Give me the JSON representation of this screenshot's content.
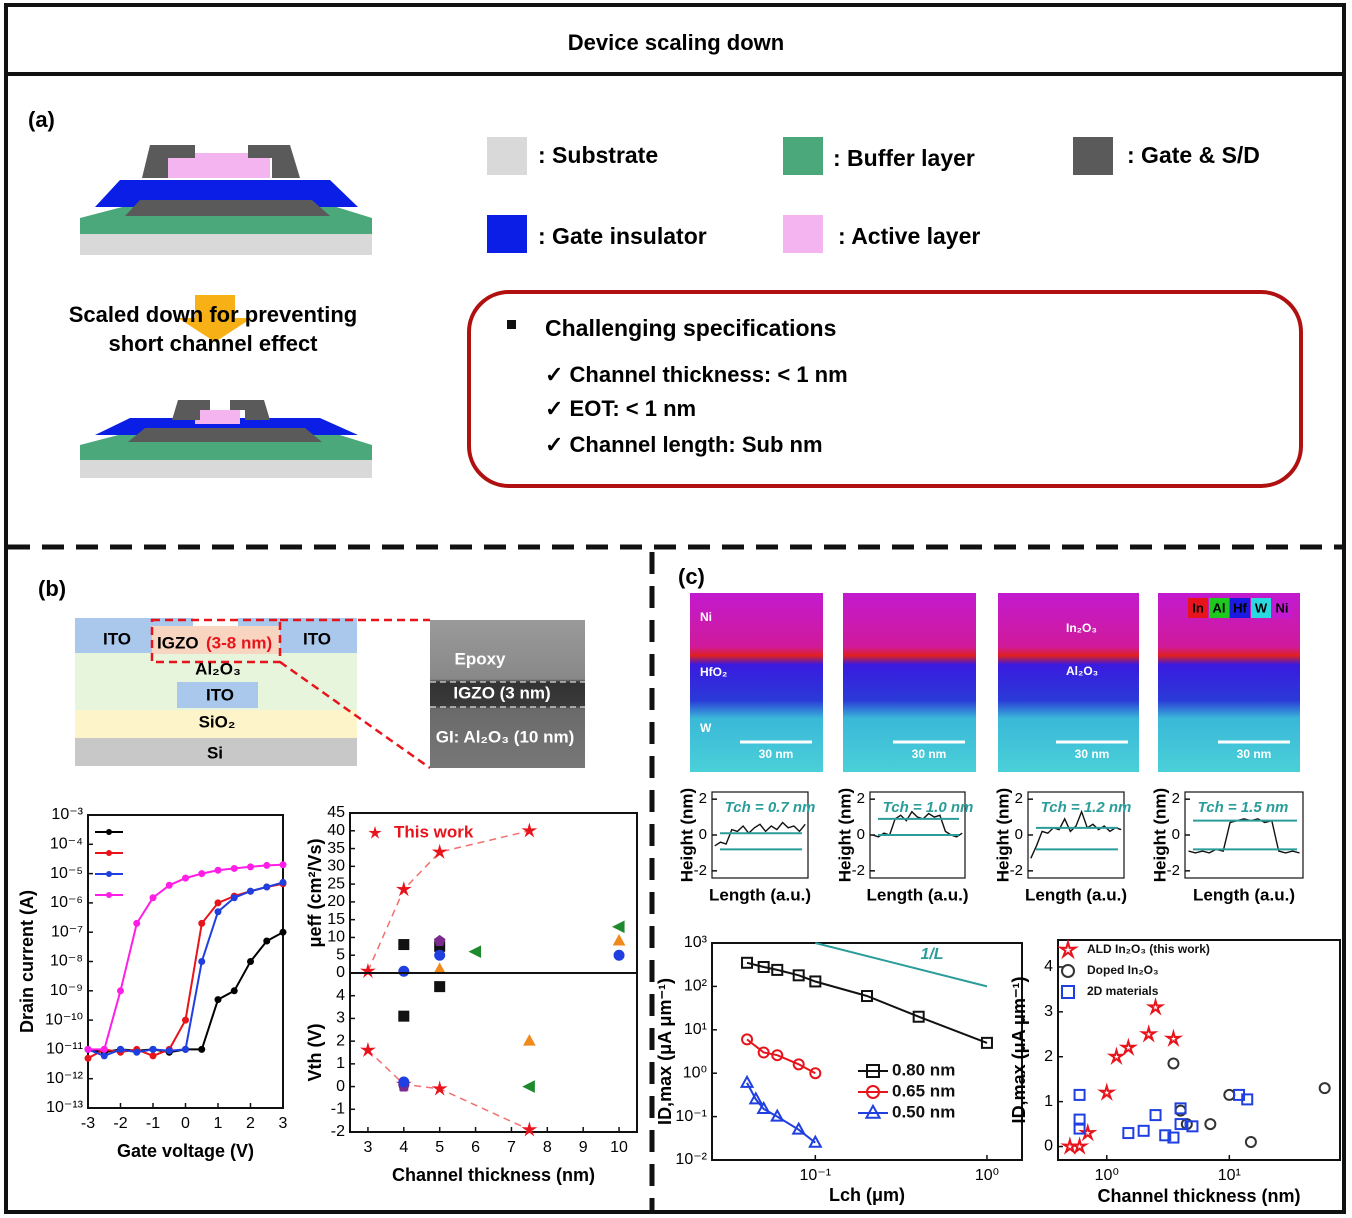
{
  "header": {
    "title": "Device scaling down"
  },
  "panel_a": {
    "label": "(a)",
    "legend": [
      ": Substrate",
      ": Buffer layer",
      ": Gate & S/D",
      ": Gate insulator",
      ": Active layer"
    ],
    "arrow_text": [
      "Scaled down for preventing",
      "short channel effect"
    ],
    "spec_title": "Challenging specifications",
    "specs": [
      "✓ Channel thickness: < 1 nm",
      "✓ EOT: < 1 nm",
      "✓ Channel length: Sub nm"
    ]
  },
  "panel_b": {
    "label": "(b)",
    "stack": [
      "ITO",
      "IGZO",
      "(3-8 nm)",
      "ITO",
      "Al₂O₃",
      "ITO",
      "SiO₂",
      "Si"
    ],
    "tem": [
      "Epoxy",
      "IGZO (3 nm)",
      "GI: Al₂O₃ (10 nm)"
    ]
  },
  "panel_c": {
    "label": "(c)",
    "eds_legend": [
      "In",
      "Al",
      "Hf",
      "W",
      "Ni"
    ],
    "layers": [
      "Ni",
      "HfO₂",
      "W"
    ],
    "interface": [
      "In₂O₃",
      "Al₂O₃"
    ],
    "scale_bar": "30 nm"
  },
  "chart_data": [
    {
      "type": "line",
      "xlabel": "Gate voltage (V)",
      "ylabel": "Drain current (A)",
      "yscale": "log",
      "x": [
        -3,
        -2.5,
        -2,
        -1.5,
        -1,
        -0.5,
        0,
        0.5,
        1,
        1.5,
        2,
        2.5,
        3
      ],
      "series": [
        {
          "color": "#000000",
          "values": [
            1e-11,
            8e-12,
            1e-11,
            9e-12,
            1e-11,
            8e-12,
            1e-11,
            1e-11,
            5e-10,
            1e-09,
            1e-08,
            5e-08,
            1e-07
          ]
        },
        {
          "color": "#e8141c",
          "values": [
            5e-12,
            1e-11,
            8e-12,
            1e-11,
            6e-12,
            1e-11,
            1e-10,
            2e-07,
            1e-06,
            1.7e-06,
            2.5e-06,
            3.5e-06,
            4.5e-06
          ]
        },
        {
          "color": "#1f3fe0",
          "values": [
            1e-11,
            6e-12,
            1e-11,
            8e-12,
            1e-11,
            9e-12,
            1e-11,
            1e-08,
            5e-07,
            1.5e-06,
            2.5e-06,
            3.5e-06,
            5e-06
          ]
        },
        {
          "color": "#ff1ee6",
          "values": [
            1e-11,
            1e-11,
            1e-09,
            2e-07,
            1.5e-06,
            4e-06,
            7e-06,
            1e-05,
            1.3e-05,
            1.5e-05,
            1.7e-05,
            1.9e-05,
            2e-05
          ]
        }
      ],
      "xlim": [
        -3,
        3
      ],
      "xticks": [
        -3,
        -2,
        -1,
        0,
        1,
        2,
        3
      ],
      "ylim": [
        1e-13,
        0.001
      ],
      "yticks": [
        {
          "value": 1e-13,
          "label": "10⁻¹³"
        },
        {
          "value": 1e-12,
          "label": "10⁻¹²"
        },
        {
          "value": 1e-11,
          "label": "10⁻¹¹"
        },
        {
          "value": 1e-10,
          "label": "10⁻¹⁰"
        },
        {
          "value": 1e-09,
          "label": "10⁻⁹"
        },
        {
          "value": 1e-08,
          "label": "10⁻⁸"
        },
        {
          "value": 1e-07,
          "label": "10⁻⁷"
        },
        {
          "value": 1e-06,
          "label": "10⁻⁶"
        },
        {
          "value": 1e-05,
          "label": "10⁻⁵"
        },
        {
          "value": 0.0001,
          "label": "10⁻⁴"
        },
        {
          "value": 0.001,
          "label": "10⁻³"
        }
      ]
    },
    {
      "type": "scatter",
      "ylabel": "μeff (cm²/Vs)",
      "xlim": [
        2.5,
        10.5
      ],
      "ylim": [
        0,
        45
      ],
      "yticks": [
        0,
        5,
        10,
        15,
        20,
        25,
        30,
        35,
        40,
        45
      ],
      "series": [
        {
          "name": "This work",
          "color": "#e8141c",
          "marker": "star",
          "line_style": "dashed",
          "x": [
            3,
            4,
            5,
            7.5
          ],
          "values": [
            0.5,
            23.5,
            34,
            40
          ]
        },
        {
          "color": "#111111",
          "marker": "square",
          "x": [
            4,
            5
          ],
          "values": [
            8,
            7.5
          ]
        },
        {
          "color": "#7b2b8c",
          "marker": "pentagon",
          "x": [
            5
          ],
          "values": [
            9
          ]
        },
        {
          "color": "#1f3fe0",
          "marker": "circle",
          "x": [
            4,
            5,
            10
          ],
          "values": [
            0.5,
            5,
            5
          ]
        },
        {
          "color": "#f08a1c",
          "marker": "triangle",
          "x": [
            5,
            10
          ],
          "values": [
            1,
            9
          ]
        },
        {
          "color": "#1e8a2e",
          "marker": "left",
          "x": [
            6,
            10
          ],
          "values": [
            6,
            13
          ]
        }
      ]
    },
    {
      "type": "scatter",
      "xlabel": "Channel thickness (nm)",
      "ylabel": "Vth (V)",
      "xlim": [
        2.5,
        10.5
      ],
      "xticks": [
        3,
        4,
        5,
        6,
        7,
        8,
        9,
        10
      ],
      "ylim": [
        -2,
        5
      ],
      "yticks": [
        -2,
        -1,
        0,
        1,
        2,
        3,
        4
      ],
      "series": [
        {
          "color": "#e8141c",
          "marker": "star",
          "line_style": "dashed",
          "x": [
            3,
            4,
            5,
            7.5
          ],
          "values": [
            1.6,
            0.1,
            -0.1,
            -1.9
          ]
        },
        {
          "color": "#111111",
          "marker": "square",
          "x": [
            4,
            5
          ],
          "values": [
            3.1,
            4.4
          ]
        },
        {
          "color": "#7b2b8c",
          "marker": "pentagon",
          "x": [
            4
          ],
          "values": [
            0
          ]
        },
        {
          "color": "#1f3fe0",
          "marker": "circle",
          "x": [
            4
          ],
          "values": [
            0.2
          ]
        },
        {
          "color": "#f08a1c",
          "marker": "triangle",
          "x": [
            7.5
          ],
          "values": [
            2
          ]
        },
        {
          "color": "#1e8a2e",
          "marker": "left",
          "x": [
            7.5
          ],
          "values": [
            0
          ]
        }
      ]
    },
    {
      "type": "line",
      "xlabel": "Length (a.u.)",
      "ylabel": "Height (nm)",
      "annotation": "Tch = 0.7 nm",
      "color": "#111111",
      "ref_color": "#2a9d9a",
      "ylim": [
        -2.4,
        2.4
      ],
      "yticks": [
        -2,
        0,
        2
      ],
      "reference_lines": [
        0.1,
        -0.8
      ],
      "values": [
        -0.6,
        -0.4,
        -0.5,
        0.3,
        0.2,
        0.5,
        0.1,
        0.4,
        0.6,
        0.2,
        0.5,
        0.3,
        0.7,
        0.4,
        0.5,
        0.2,
        0.6
      ]
    },
    {
      "type": "line",
      "xlabel": "Length (a.u.)",
      "ylabel": "Height (nm)",
      "annotation": "Tch = 1.0 nm",
      "color": "#111111",
      "ref_color": "#2a9d9a",
      "ylim": [
        -2.4,
        2.4
      ],
      "yticks": [
        -2,
        0,
        2
      ],
      "reference_lines": [
        0.9,
        0
      ],
      "values": [
        0,
        -0.1,
        0.1,
        0,
        0.9,
        1.1,
        0.8,
        1.3,
        1,
        0.9,
        1.2,
        1,
        1.1,
        0.2,
        0,
        -0.1,
        0.1
      ]
    },
    {
      "type": "line",
      "xlabel": "Length (a.u.)",
      "ylabel": "Height (nm)",
      "annotation": "Tch = 1.2 nm",
      "color": "#111111",
      "ref_color": "#2a9d9a",
      "ylim": [
        -2.4,
        2.4
      ],
      "yticks": [
        -2,
        0,
        2
      ],
      "reference_lines": [
        0.4,
        -0.8
      ],
      "values": [
        -1.3,
        -0.6,
        0.2,
        0.1,
        0.4,
        0.3,
        0.9,
        0.2,
        0.5,
        1.3,
        0.4,
        0.6,
        0.3,
        0.5,
        0.2,
        0.4,
        0.3
      ]
    },
    {
      "type": "line",
      "xlabel": "Length (a.u.)",
      "ylabel": "Height (nm)",
      "annotation": "Tch = 1.5 nm",
      "color": "#111111",
      "ref_color": "#2a9d9a",
      "ylim": [
        -2.4,
        2.4
      ],
      "yticks": [
        -2,
        0,
        2
      ],
      "reference_lines": [
        0.8,
        -0.8
      ],
      "values": [
        -0.9,
        -1,
        -0.9,
        -1,
        -0.8,
        -0.9,
        0.7,
        0.8,
        0.9,
        0.8,
        0.9,
        0.7,
        0.8,
        -0.9,
        -1,
        -0.9,
        -1
      ]
    },
    {
      "type": "line",
      "xlabel": "Lch (μm)",
      "ylabel": "ID,max (μA μm⁻¹)",
      "annotation": "1/L",
      "xscale": "log",
      "yscale": "log",
      "xlim": [
        0.025,
        1.6
      ],
      "ylim": [
        0.01,
        1000
      ],
      "xticks": [
        {
          "value": 0.1,
          "label": "10⁻¹"
        },
        {
          "value": 1,
          "label": "10⁰"
        }
      ],
      "yticks": [
        {
          "value": 0.01,
          "label": "10⁻²"
        },
        {
          "value": 0.1,
          "label": "10⁻¹"
        },
        {
          "value": 1,
          "label": "10⁰"
        },
        {
          "value": 10,
          "label": "10¹"
        },
        {
          "value": 100,
          "label": "10²"
        },
        {
          "value": 1000,
          "label": "10³"
        }
      ],
      "series": [
        {
          "name": "0.80 nm",
          "color": "#111111",
          "marker": "square",
          "x": [
            0.04,
            0.05,
            0.06,
            0.08,
            0.1,
            0.2,
            0.4,
            1.0
          ],
          "values": [
            350,
            280,
            240,
            180,
            130,
            60,
            20,
            5
          ]
        },
        {
          "name": "0.65 nm",
          "color": "#e8141c",
          "marker": "circle",
          "x": [
            0.04,
            0.05,
            0.06,
            0.08,
            0.1
          ],
          "values": [
            6,
            3,
            2.6,
            1.6,
            1
          ]
        },
        {
          "name": "0.50 nm",
          "color": "#1f3fe0",
          "marker": "triangle",
          "x": [
            0.04,
            0.045,
            0.05,
            0.06,
            0.08,
            0.1
          ],
          "values": [
            0.6,
            0.25,
            0.15,
            0.1,
            0.05,
            0.025
          ]
        },
        {
          "color": "#2a9d9a",
          "x": [
            0.1,
            1
          ],
          "values": [
            1000,
            100
          ]
        }
      ]
    },
    {
      "type": "scatter",
      "xlabel": "Channel thickness (nm)",
      "ylabel": "ID,max (μA μm⁻¹)",
      "xscale": "log",
      "xlim": [
        0.4,
        80
      ],
      "ylim": [
        -0.3,
        4.6
      ],
      "xticks": [
        {
          "value": 1,
          "label": "10⁰"
        },
        {
          "value": 10,
          "label": "10¹"
        }
      ],
      "yticks": [
        0,
        1,
        2,
        3,
        4
      ],
      "series": [
        {
          "name": "ALD In₂O₃ (this work)",
          "color": "#e8141c",
          "marker": "star",
          "open": true,
          "x": [
            0.5,
            0.6,
            0.7,
            1.0,
            1.2,
            1.5,
            2.2,
            2.5,
            3.5
          ],
          "values": [
            0,
            0,
            0.3,
            1.2,
            2.0,
            2.2,
            2.5,
            3.1,
            2.4
          ]
        },
        {
          "name": "Doped In₂O₃",
          "color": "#333333",
          "marker": "circle",
          "open": true,
          "x": [
            3.5,
            4,
            4.5,
            7,
            10,
            15,
            60
          ],
          "values": [
            1.85,
            0.8,
            0.5,
            0.5,
            1.15,
            0.1,
            1.3
          ]
        },
        {
          "name": "2D materials",
          "color": "#1f3fe0",
          "marker": "square",
          "open": true,
          "x": [
            0.6,
            0.6,
            0.6,
            1.5,
            2,
            2.5,
            3,
            3.5,
            4,
            4,
            5,
            12,
            14
          ],
          "values": [
            1.15,
            0.6,
            0.4,
            0.3,
            0.35,
            0.7,
            0.25,
            0.2,
            0.85,
            0.5,
            0.45,
            1.15,
            1.05
          ]
        }
      ]
    }
  ]
}
